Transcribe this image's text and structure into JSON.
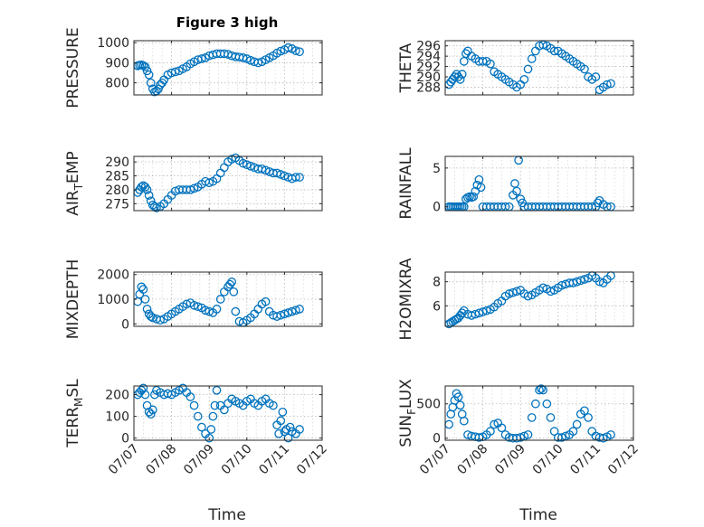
{
  "figure": {
    "title": "Figure 3 high",
    "marker_color": "#0072BD",
    "xlabel": "Time"
  },
  "x_tick_labels": [
    "07/07",
    "07/08",
    "07/09",
    "07/10",
    "07/11",
    "07/12"
  ],
  "chart_data": [
    {
      "type": "scatter",
      "ylabel": "PRESSURE",
      "xlim": [
        0,
        5
      ],
      "ylim": [
        740,
        1010
      ],
      "yticks": [
        800,
        900,
        1000
      ],
      "x": [
        0.1,
        0.15,
        0.2,
        0.25,
        0.3,
        0.35,
        0.4,
        0.45,
        0.5,
        0.55,
        0.6,
        0.65,
        0.7,
        0.75,
        0.8,
        0.9,
        1.0,
        1.1,
        1.2,
        1.3,
        1.4,
        1.5,
        1.6,
        1.7,
        1.8,
        1.9,
        2.0,
        2.1,
        2.2,
        2.3,
        2.4,
        2.5,
        2.6,
        2.7,
        2.8,
        2.9,
        3.0,
        3.1,
        3.2,
        3.3,
        3.4,
        3.5,
        3.6,
        3.7,
        3.8,
        3.9,
        4.0,
        4.1,
        4.2,
        4.3,
        4.4
      ],
      "y": [
        885,
        888,
        890,
        886,
        880,
        860,
        840,
        800,
        770,
        755,
        760,
        770,
        790,
        800,
        815,
        840,
        850,
        855,
        860,
        870,
        880,
        895,
        905,
        915,
        920,
        925,
        935,
        940,
        945,
        945,
        945,
        942,
        935,
        930,
        928,
        925,
        920,
        912,
        905,
        900,
        905,
        915,
        925,
        935,
        948,
        958,
        965,
        975,
        970,
        960,
        955
      ]
    },
    {
      "type": "scatter",
      "ylabel": "THETA",
      "xlim": [
        0,
        5
      ],
      "ylim": [
        286.5,
        297
      ],
      "yticks": [
        288,
        290,
        292,
        294,
        296
      ],
      "x": [
        0.1,
        0.15,
        0.2,
        0.25,
        0.3,
        0.35,
        0.4,
        0.45,
        0.5,
        0.55,
        0.6,
        0.7,
        0.8,
        0.9,
        1.0,
        1.1,
        1.2,
        1.3,
        1.4,
        1.5,
        1.6,
        1.7,
        1.8,
        1.9,
        2.0,
        2.1,
        2.2,
        2.3,
        2.4,
        2.5,
        2.6,
        2.7,
        2.8,
        2.9,
        3.0,
        3.1,
        3.2,
        3.3,
        3.4,
        3.5,
        3.6,
        3.7,
        3.8,
        3.9,
        4.0,
        4.1,
        4.2,
        4.3,
        4.4
      ],
      "y": [
        288.5,
        289,
        289.5,
        290,
        290.5,
        290,
        289.5,
        290.5,
        293,
        294.5,
        295,
        294,
        293.5,
        293,
        293,
        293,
        292.5,
        291,
        290.5,
        290,
        289.5,
        289,
        288.5,
        288,
        288.5,
        289.5,
        291.5,
        293.5,
        295,
        296,
        296.2,
        296,
        295.5,
        295,
        295,
        294.5,
        294,
        293.5,
        293,
        292.5,
        292,
        291.5,
        290,
        289.5,
        290,
        287.5,
        288,
        288.5,
        288.7
      ]
    },
    {
      "type": "scatter",
      "ylabel": "AIR_TEMP",
      "xlim": [
        0,
        5
      ],
      "ylim": [
        272.5,
        292
      ],
      "yticks": [
        275,
        280,
        285,
        290
      ],
      "x": [
        0.1,
        0.15,
        0.2,
        0.25,
        0.3,
        0.35,
        0.4,
        0.45,
        0.5,
        0.55,
        0.6,
        0.7,
        0.8,
        0.9,
        1.0,
        1.1,
        1.2,
        1.3,
        1.4,
        1.5,
        1.6,
        1.7,
        1.8,
        1.9,
        2.0,
        2.1,
        2.2,
        2.3,
        2.4,
        2.5,
        2.6,
        2.7,
        2.8,
        2.9,
        3.0,
        3.1,
        3.2,
        3.3,
        3.4,
        3.5,
        3.6,
        3.7,
        3.8,
        3.9,
        4.0,
        4.1,
        4.2,
        4.3,
        4.4
      ],
      "y": [
        279,
        280,
        281,
        281.5,
        281,
        280,
        278,
        276,
        274.5,
        274,
        273.5,
        274,
        275,
        276.5,
        278,
        279.5,
        280,
        280,
        280,
        280,
        280.5,
        281,
        282,
        283,
        282.5,
        283,
        284,
        286,
        288,
        290,
        291,
        291.5,
        290.5,
        289.5,
        289,
        288.5,
        288,
        287.5,
        287.5,
        287,
        286.5,
        286,
        286,
        285.5,
        285,
        284.5,
        284,
        284.5,
        284.5
      ]
    },
    {
      "type": "scatter",
      "ylabel": "RAINFALL",
      "xlim": [
        0,
        5
      ],
      "ylim": [
        -0.5,
        6.5
      ],
      "yticks": [
        0,
        5
      ],
      "x": [
        0.1,
        0.15,
        0.2,
        0.25,
        0.3,
        0.35,
        0.4,
        0.45,
        0.5,
        0.55,
        0.6,
        0.65,
        0.7,
        0.75,
        0.8,
        0.85,
        0.9,
        0.95,
        1.0,
        1.1,
        1.2,
        1.3,
        1.4,
        1.5,
        1.6,
        1.7,
        1.8,
        1.85,
        1.9,
        1.95,
        2.0,
        2.05,
        2.1,
        2.2,
        2.3,
        2.4,
        2.5,
        2.6,
        2.7,
        2.8,
        2.9,
        3.0,
        3.1,
        3.2,
        3.3,
        3.4,
        3.5,
        3.6,
        3.7,
        3.8,
        3.9,
        4.0,
        4.05,
        4.1,
        4.2,
        4.3,
        4.4
      ],
      "y": [
        0,
        0,
        0,
        0,
        0,
        0,
        0,
        0,
        0,
        1,
        1.2,
        1.3,
        1.2,
        1.3,
        2,
        2.8,
        3.5,
        2.5,
        0,
        0,
        0,
        0,
        0,
        0,
        0,
        0,
        1.5,
        3,
        2,
        6,
        1,
        0.5,
        0,
        0,
        0,
        0,
        0,
        0,
        0,
        0,
        0,
        0,
        0,
        0,
        0,
        0,
        0,
        0,
        0,
        0,
        0,
        0,
        0.5,
        0.8,
        0.3,
        0,
        0
      ]
    },
    {
      "type": "scatter",
      "ylabel": "MIXDEPTH",
      "xlim": [
        0,
        5
      ],
      "ylim": [
        -100,
        2100
      ],
      "yticks": [
        0,
        1000,
        2000
      ],
      "x": [
        0.1,
        0.15,
        0.2,
        0.25,
        0.3,
        0.35,
        0.4,
        0.45,
        0.5,
        0.6,
        0.7,
        0.8,
        0.9,
        1.0,
        1.1,
        1.2,
        1.3,
        1.4,
        1.5,
        1.6,
        1.7,
        1.8,
        1.9,
        2.0,
        2.1,
        2.2,
        2.3,
        2.4,
        2.5,
        2.55,
        2.6,
        2.65,
        2.7,
        2.8,
        2.9,
        3.0,
        3.1,
        3.2,
        3.3,
        3.4,
        3.5,
        3.6,
        3.7,
        3.8,
        3.9,
        4.0,
        4.1,
        4.2,
        4.3,
        4.4
      ],
      "y": [
        900,
        1200,
        1500,
        1400,
        1000,
        600,
        400,
        300,
        250,
        200,
        150,
        200,
        300,
        400,
        500,
        600,
        700,
        800,
        850,
        750,
        700,
        650,
        550,
        500,
        450,
        600,
        1000,
        1300,
        1500,
        1600,
        1700,
        1300,
        500,
        100,
        50,
        150,
        250,
        400,
        600,
        800,
        900,
        500,
        350,
        300,
        350,
        400,
        450,
        500,
        550,
        600
      ]
    },
    {
      "type": "scatter",
      "ylabel": "H2OMIXRA",
      "xlim": [
        0,
        5
      ],
      "ylim": [
        4.3,
        8.8
      ],
      "yticks": [
        6,
        8
      ],
      "x": [
        0.1,
        0.15,
        0.2,
        0.25,
        0.3,
        0.35,
        0.4,
        0.45,
        0.5,
        0.6,
        0.7,
        0.8,
        0.9,
        1.0,
        1.1,
        1.2,
        1.3,
        1.4,
        1.5,
        1.6,
        1.7,
        1.8,
        1.9,
        2.0,
        2.1,
        2.2,
        2.3,
        2.4,
        2.5,
        2.6,
        2.7,
        2.8,
        2.9,
        3.0,
        3.1,
        3.2,
        3.3,
        3.4,
        3.5,
        3.6,
        3.7,
        3.8,
        3.9,
        4.0,
        4.1,
        4.2,
        4.3,
        4.4
      ],
      "y": [
        4.5,
        4.6,
        4.7,
        4.8,
        4.9,
        5,
        5.2,
        5.4,
        5.6,
        5.3,
        5.2,
        5.3,
        5.4,
        5.5,
        5.6,
        5.7,
        5.9,
        6.2,
        6.4,
        6.8,
        7,
        7.1,
        7.2,
        7.3,
        7,
        6.8,
        6.9,
        7.1,
        7.3,
        7.5,
        7.4,
        7.2,
        7.3,
        7.5,
        7.7,
        7.8,
        7.9,
        7.9,
        8,
        8.1,
        8.2,
        8.3,
        8.5,
        8.3,
        8.0,
        7.9,
        8.2,
        8.5
      ]
    },
    {
      "type": "scatter",
      "ylabel": "TERR_MSL",
      "xlim": [
        0,
        5
      ],
      "ylim": [
        -10,
        240
      ],
      "yticks": [
        0,
        100,
        200
      ],
      "x": [
        0.1,
        0.15,
        0.2,
        0.25,
        0.3,
        0.35,
        0.4,
        0.45,
        0.5,
        0.55,
        0.6,
        0.7,
        0.8,
        0.9,
        1.0,
        1.1,
        1.2,
        1.3,
        1.4,
        1.5,
        1.6,
        1.7,
        1.8,
        1.9,
        2.0,
        2.05,
        2.1,
        2.15,
        2.2,
        2.3,
        2.4,
        2.5,
        2.6,
        2.7,
        2.8,
        2.9,
        3.0,
        3.1,
        3.2,
        3.3,
        3.4,
        3.5,
        3.6,
        3.7,
        3.8,
        3.85,
        3.9,
        3.95,
        4.0,
        4.05,
        4.1,
        4.15,
        4.2,
        4.3,
        4.4
      ],
      "y": [
        200,
        210,
        220,
        230,
        200,
        150,
        120,
        110,
        130,
        200,
        220,
        210,
        200,
        205,
        200,
        210,
        220,
        230,
        210,
        190,
        150,
        100,
        50,
        20,
        0,
        40,
        100,
        150,
        220,
        150,
        130,
        160,
        180,
        170,
        160,
        150,
        170,
        180,
        160,
        150,
        170,
        180,
        160,
        150,
        60,
        20,
        80,
        120,
        30,
        40,
        0,
        50,
        30,
        20,
        40
      ]
    },
    {
      "type": "scatter",
      "ylabel": "SUN_FLUX",
      "xlim": [
        0,
        5
      ],
      "ylim": [
        -30,
        760
      ],
      "yticks": [
        0,
        500
      ],
      "x": [
        0.1,
        0.15,
        0.2,
        0.25,
        0.3,
        0.35,
        0.4,
        0.45,
        0.5,
        0.6,
        0.7,
        0.8,
        0.9,
        1.0,
        1.1,
        1.2,
        1.3,
        1.4,
        1.5,
        1.6,
        1.7,
        1.8,
        1.9,
        2.0,
        2.1,
        2.2,
        2.3,
        2.4,
        2.5,
        2.55,
        2.6,
        2.7,
        2.8,
        2.9,
        3.0,
        3.1,
        3.2,
        3.3,
        3.4,
        3.5,
        3.6,
        3.7,
        3.8,
        3.9,
        4.0,
        4.1,
        4.2,
        4.3,
        4.4
      ],
      "y": [
        200,
        350,
        450,
        550,
        650,
        600,
        480,
        350,
        250,
        50,
        30,
        20,
        10,
        20,
        50,
        100,
        200,
        220,
        150,
        50,
        10,
        0,
        0,
        10,
        30,
        50,
        300,
        500,
        700,
        720,
        700,
        500,
        300,
        100,
        10,
        10,
        30,
        50,
        100,
        200,
        350,
        400,
        300,
        100,
        30,
        10,
        0,
        20,
        50
      ]
    }
  ]
}
